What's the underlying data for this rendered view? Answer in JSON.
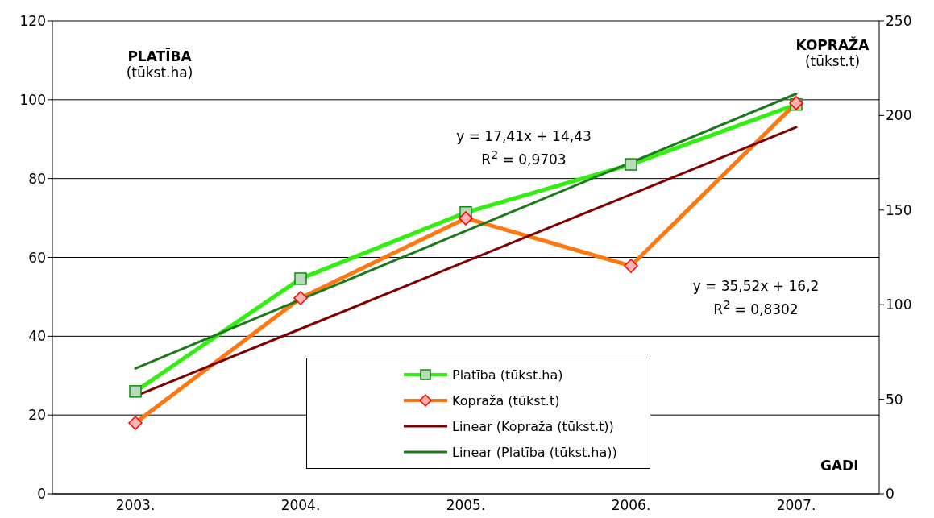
{
  "chart_data": {
    "type": "line",
    "categories": [
      "2003.",
      "2004.",
      "2005.",
      "2006.",
      "2007."
    ],
    "xlabel": "GADI",
    "ylabel": "PLATĪBA\n(tūkst.ha)",
    "y2label": "KOPRAŽA\n(tūkst.t)",
    "ylim": [
      0,
      120
    ],
    "yticks": [
      0,
      20,
      40,
      60,
      80,
      100,
      120
    ],
    "y2lim": [
      0,
      250
    ],
    "y2ticks": [
      0,
      50,
      100,
      150,
      200,
      250
    ],
    "grid": "y",
    "legend": "bottom",
    "series": [
      {
        "name": "Platība (tūkst.ha)",
        "color": "#33ee11",
        "marker": "square",
        "values": [
          26.0,
          54.6,
          71.4,
          83.6,
          98.8
        ]
      },
      {
        "name": "Kopraža (tūkst.t)",
        "color": "#ff7711",
        "marker": "diamond",
        "axis": "y2",
        "values": [
          37.5,
          103.5,
          145.7,
          120.5,
          206.6
        ]
      },
      {
        "name": "Linear (Kopraža (tūkst.t))",
        "color": "#800000",
        "marker": "none",
        "axis": "y2",
        "values": [
          51.7,
          87.2,
          122.8,
          158.3,
          193.8
        ]
      },
      {
        "name": "Linear (Platība (tūkst.ha))",
        "color": "#1a7a1a",
        "marker": "none",
        "values": [
          31.8,
          49.3,
          66.7,
          84.1,
          101.5
        ]
      }
    ],
    "annotations": [
      "y = 17,41x + 14,43\nR$^{2}$ = 0,9703",
      "y = 35,52x + 16,2\nR$^{2}$ = 0,8302"
    ]
  }
}
